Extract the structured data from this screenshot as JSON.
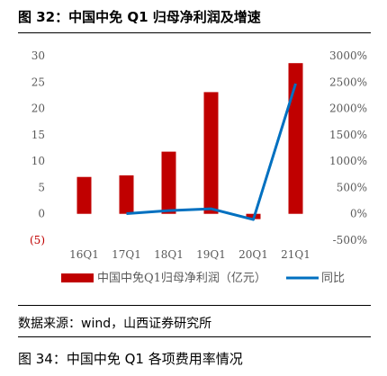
{
  "header": {
    "title": "图 32：中国中免 Q1 归母净利润及增速"
  },
  "footer": {
    "source": "数据来源：wind，山西证券研究所",
    "next_title": "图 34：中国中免 Q1 各项费用率情况"
  },
  "colors": {
    "bar": "#c00000",
    "line": "#0070c0",
    "axis_text": "#595959",
    "negative_text": "#c00000"
  },
  "chart_data": {
    "type": "bar",
    "categories": [
      "16Q1",
      "17Q1",
      "18Q1",
      "19Q1",
      "20Q1",
      "21Q1"
    ],
    "series": [
      {
        "name": "中国中免Q1归母净利润（亿元）",
        "type": "bar",
        "axis": "left",
        "values": [
          7.0,
          7.3,
          11.8,
          23.1,
          -1.0,
          28.6
        ]
      },
      {
        "name": "同比",
        "type": "line",
        "axis": "right",
        "values": [
          null,
          4,
          62,
          96,
          -108,
          2472
        ]
      }
    ],
    "y_left": {
      "ylim": [
        -5,
        30
      ],
      "ticks": [
        "(5)",
        "0",
        "5",
        "10",
        "15",
        "20",
        "25",
        "30"
      ]
    },
    "y_right": {
      "ylim": [
        -500,
        3000
      ],
      "ticks": [
        "-500%",
        "0%",
        "500%",
        "1000%",
        "1500%",
        "2000%",
        "2500%",
        "3000%"
      ]
    },
    "grid": false,
    "legend": {
      "placement": "bottom"
    }
  }
}
